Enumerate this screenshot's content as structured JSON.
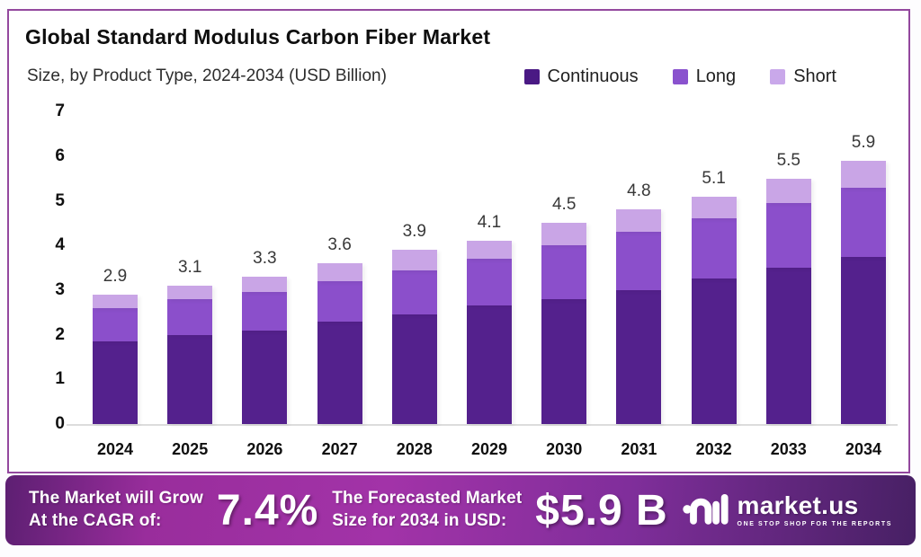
{
  "header": {
    "title": "Global Standard Modulus Carbon Fiber Market",
    "subtitle": "Size, by Product Type, 2024-2034 (USD Billion)"
  },
  "legend": [
    {
      "label": "Continuous",
      "color": "#4a1984"
    },
    {
      "label": "Long",
      "color": "#8a52ce"
    },
    {
      "label": "Short",
      "color": "#c9a8ea"
    }
  ],
  "chart_data": {
    "type": "bar",
    "stacked": true,
    "title": "Global Standard Modulus Carbon Fiber Market",
    "subtitle": "Size, by Product Type, 2024-2034 (USD Billion)",
    "categories": [
      "2024",
      "2025",
      "2026",
      "2027",
      "2028",
      "2029",
      "2030",
      "2031",
      "2032",
      "2033",
      "2034"
    ],
    "series": [
      {
        "name": "Continuous",
        "color": "#54218d",
        "values": [
          1.85,
          2.0,
          2.1,
          2.3,
          2.45,
          2.65,
          2.8,
          3.0,
          3.25,
          3.5,
          3.75
        ]
      },
      {
        "name": "Long",
        "color": "#8b4fcb",
        "values": [
          0.75,
          0.8,
          0.85,
          0.9,
          1.0,
          1.05,
          1.2,
          1.3,
          1.35,
          1.45,
          1.55
        ]
      },
      {
        "name": "Short",
        "color": "#c9a5e6",
        "values": [
          0.3,
          0.3,
          0.35,
          0.4,
          0.45,
          0.4,
          0.5,
          0.5,
          0.5,
          0.55,
          0.6
        ]
      }
    ],
    "totals": [
      2.9,
      3.1,
      3.3,
      3.6,
      3.9,
      4.1,
      4.5,
      4.8,
      5.1,
      5.5,
      5.9
    ],
    "ylim": [
      0,
      7
    ],
    "yticks": [
      0,
      1,
      2,
      3,
      4,
      5,
      6,
      7
    ],
    "grid": false,
    "legend_position": "top-right",
    "unit": "USD Billion"
  },
  "banner": {
    "cagr_label_line1": "The Market will Grow",
    "cagr_label_line2": "At the CAGR of:",
    "cagr_value": "7.4%",
    "forecast_label_line1": "The Forecasted Market",
    "forecast_label_line2": "Size for 2034 in USD:",
    "forecast_value": "$5.9 B",
    "logo": {
      "name": "market.us",
      "tagline": "ONE STOP SHOP FOR THE REPORTS"
    }
  },
  "colors": {
    "frame_border": "#93489e",
    "axis_line": "#dcdcdc",
    "banner_gradient_start": "#5d1f72",
    "banner_gradient_mid": "#a233a8",
    "banner_gradient_end": "#472064"
  }
}
